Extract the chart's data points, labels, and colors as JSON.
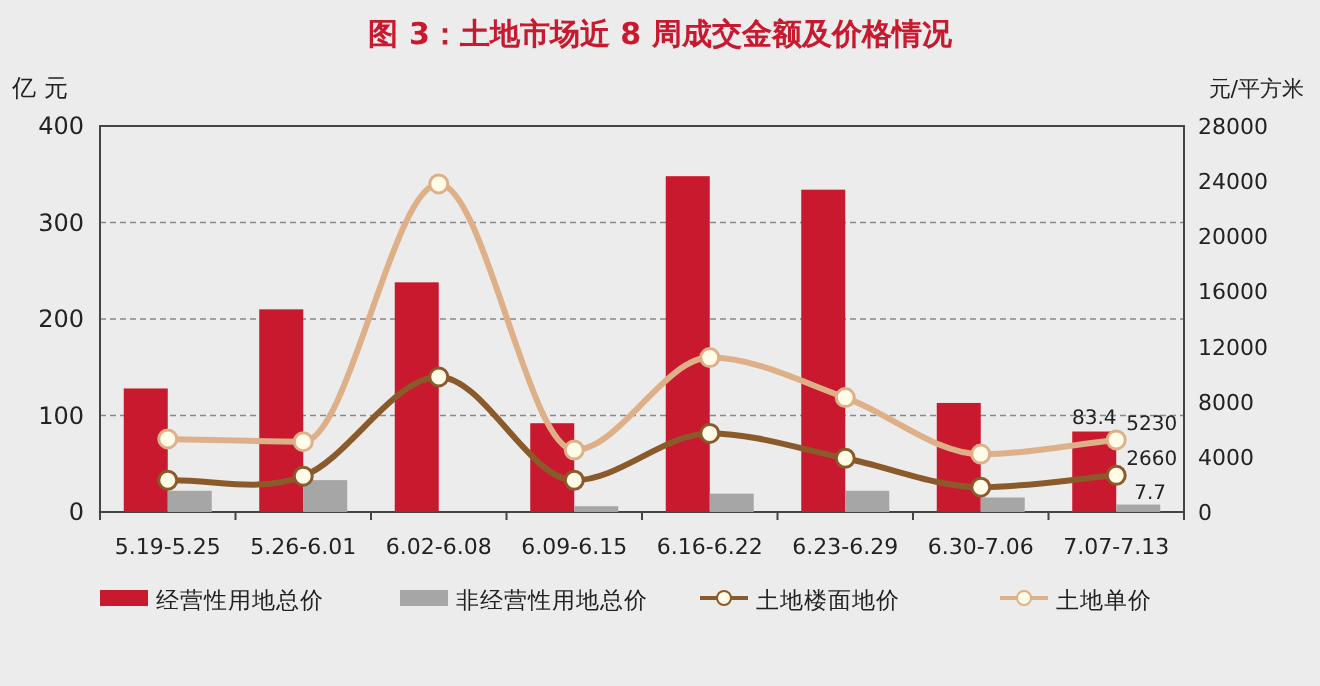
{
  "chart_data": {
    "type": "bar",
    "title": "图 3：土地市场近 8 周成交金额及价格情况",
    "ylabel": "亿 元",
    "y2label": "元/平方米",
    "categories": [
      "5.19-5.25",
      "5.26-6.01",
      "6.02-6.08",
      "6.09-6.15",
      "6.16-6.22",
      "6.23-6.29",
      "6.30-7.06",
      "7.07-7.13"
    ],
    "series": [
      {
        "name": "经营性用地总价",
        "color": "#c8192e",
        "values": [
          128,
          210,
          238,
          92,
          348,
          334,
          113,
          83.4
        ],
        "value_labels": [
          null,
          null,
          null,
          null,
          null,
          null,
          null,
          "83.4"
        ]
      },
      {
        "name": "非经营性用地总价",
        "color": "#a6a6a6",
        "values": [
          22,
          33,
          null,
          6,
          19,
          22,
          15,
          7.7
        ],
        "value_labels": [
          null,
          null,
          null,
          null,
          null,
          null,
          null,
          "7.7"
        ]
      },
      {
        "name": "土地楼面地价",
        "type": "line",
        "axis": "y2",
        "color": "#8b5a2b",
        "values": [
          2300,
          2600,
          9800,
          2300,
          5700,
          3900,
          1800,
          2660
        ],
        "value_labels": [
          null,
          null,
          null,
          null,
          null,
          null,
          null,
          "2660"
        ]
      },
      {
        "name": "土地单价",
        "type": "line",
        "axis": "y2",
        "color": "#ddb088",
        "values": [
          5300,
          5100,
          23800,
          4500,
          11200,
          8300,
          4200,
          5230
        ],
        "value_labels": [
          null,
          null,
          null,
          null,
          null,
          null,
          null,
          "5230"
        ]
      }
    ],
    "ylim": [
      0,
      400
    ],
    "yticks": [
      0,
      100,
      200,
      300,
      400
    ],
    "y2lim": [
      0,
      28000
    ],
    "y2ticks": [
      0,
      4000,
      8000,
      12000,
      16000,
      20000,
      24000,
      28000
    ],
    "grid": "y",
    "legend": "bottom",
    "marker": "circle"
  }
}
